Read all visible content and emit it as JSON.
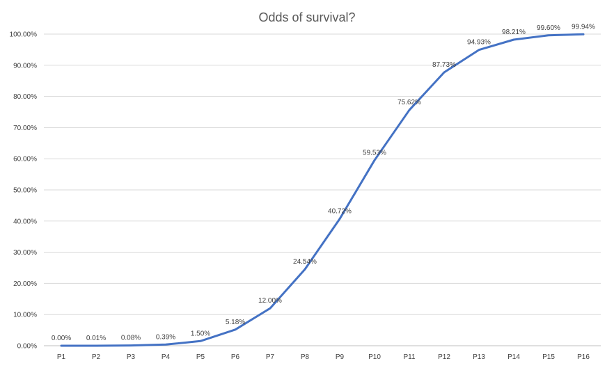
{
  "chart_data": {
    "type": "line",
    "title": "Odds of survival?",
    "xlabel": "",
    "ylabel": "",
    "categories": [
      "P1",
      "P2",
      "P3",
      "P4",
      "P5",
      "P6",
      "P7",
      "P8",
      "P9",
      "P10",
      "P11",
      "P12",
      "P13",
      "P14",
      "P15",
      "P16"
    ],
    "series": [
      {
        "values": [
          0.0,
          0.01,
          0.08,
          0.39,
          1.5,
          5.18,
          12.0,
          24.54,
          40.72,
          59.53,
          75.62,
          87.73,
          94.93,
          98.21,
          99.6,
          99.94
        ],
        "labels": [
          "0.00%",
          "0.01%",
          "0.08%",
          "0.39%",
          "1.50%",
          "5.18%",
          "12.00%",
          "24.54%",
          "40.72%",
          "59.53%",
          "75.62%",
          "87.73%",
          "94.93%",
          "98.21%",
          "99.60%",
          "99.94%"
        ],
        "color": "#4472c4"
      }
    ],
    "ylim": [
      0,
      100
    ],
    "yticks": [
      0,
      10,
      20,
      30,
      40,
      50,
      60,
      70,
      80,
      90,
      100
    ],
    "ytick_labels": [
      "0.00%",
      "10.00%",
      "20.00%",
      "30.00%",
      "40.00%",
      "50.00%",
      "60.00%",
      "70.00%",
      "80.00%",
      "90.00%",
      "100.00%"
    ],
    "grid": true,
    "legend": "none"
  }
}
